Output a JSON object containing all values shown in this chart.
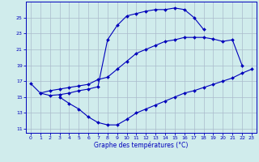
{
  "bg_color": "#d0ecec",
  "grid_color": "#aabbcc",
  "line_color": "#0000bb",
  "xlabel": "Graphe des températures (°C)",
  "ylim": [
    10.5,
    27.0
  ],
  "xlim": [
    -0.5,
    23.5
  ],
  "yticks": [
    11,
    13,
    15,
    17,
    19,
    21,
    23,
    25
  ],
  "xticks": [
    0,
    1,
    2,
    3,
    4,
    5,
    6,
    7,
    8,
    9,
    10,
    11,
    12,
    13,
    14,
    15,
    16,
    17,
    18,
    19,
    20,
    21,
    22,
    23
  ],
  "line_max_x": [
    0,
    1,
    2,
    3,
    4,
    5,
    6,
    7,
    8,
    9,
    10,
    11,
    12,
    13,
    14,
    15,
    16,
    17,
    18
  ],
  "line_max_y": [
    16.7,
    15.5,
    15.2,
    15.3,
    15.5,
    15.8,
    16.0,
    16.3,
    22.2,
    24.0,
    25.2,
    25.5,
    25.8,
    26.0,
    26.0,
    26.2,
    26.0,
    25.0,
    23.5
  ],
  "line_min_x": [
    3,
    4,
    5,
    6,
    7,
    8,
    9,
    10,
    11,
    12,
    13,
    14,
    15,
    16,
    17,
    18,
    19,
    20,
    21,
    22,
    23
  ],
  "line_min_y": [
    15.0,
    14.2,
    13.5,
    12.5,
    11.8,
    11.5,
    11.5,
    12.2,
    13.0,
    13.5,
    14.0,
    14.5,
    15.0,
    15.5,
    15.8,
    16.2,
    16.6,
    17.0,
    17.4,
    18.0,
    18.5
  ],
  "line_mean_x": [
    1,
    2,
    3,
    4,
    5,
    6,
    7,
    8,
    9,
    10,
    11,
    12,
    13,
    14,
    15,
    16,
    17,
    18,
    19,
    20,
    21,
    22
  ],
  "line_mean_y": [
    15.5,
    15.8,
    16.0,
    16.2,
    16.4,
    16.6,
    17.2,
    17.5,
    18.5,
    19.5,
    20.5,
    21.0,
    21.5,
    22.0,
    22.2,
    22.5,
    22.5,
    22.5,
    22.3,
    22.0,
    22.2,
    19.0
  ]
}
